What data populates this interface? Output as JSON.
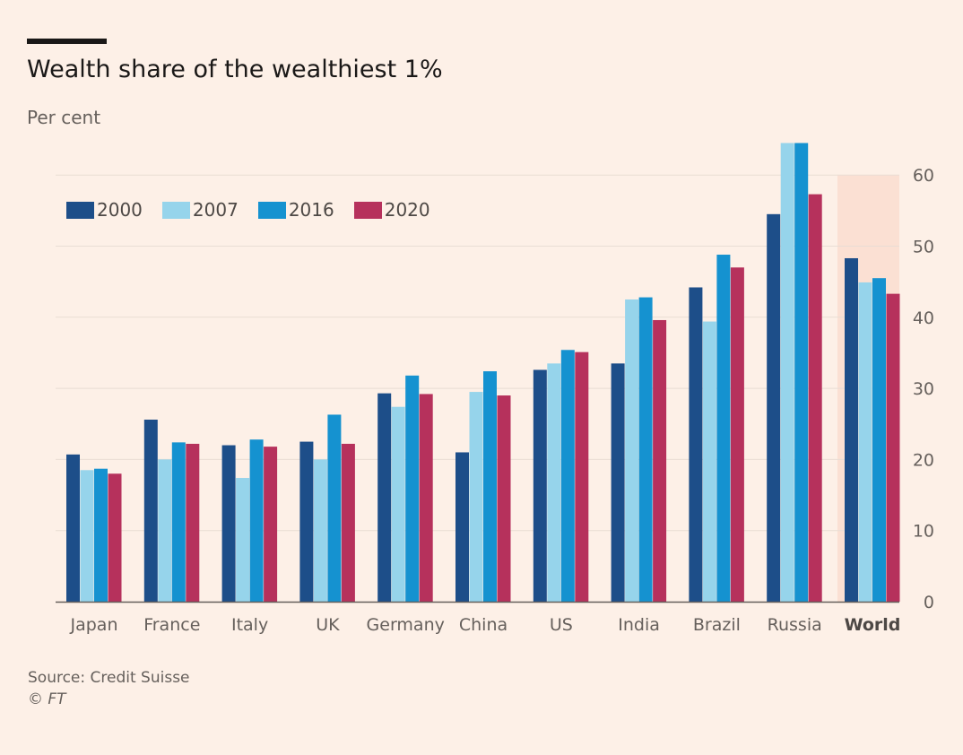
{
  "header": {
    "title": "Wealth share of the wealthiest 1%",
    "subtitle": "Per cent"
  },
  "footer": {
    "source": "Source: Credit Suisse",
    "credit": "© FT"
  },
  "colors": {
    "background": "#fdf0e7",
    "highlight_band": "#fbe0d3",
    "gridline": "#e9ddd4",
    "baseline": "#66605c"
  },
  "chart_data": {
    "type": "bar",
    "categories": [
      "Japan",
      "France",
      "Italy",
      "UK",
      "Germany",
      "China",
      "US",
      "India",
      "Brazil",
      "Russia",
      "World"
    ],
    "highlighted_category": "World",
    "series": [
      {
        "name": "2000",
        "color": "#1d4e89",
        "values": [
          20.7,
          25.6,
          22.0,
          22.5,
          29.3,
          21.0,
          32.6,
          33.5,
          44.2,
          54.5,
          48.3
        ]
      },
      {
        "name": "2007",
        "color": "#96d4eb",
        "values": [
          18.5,
          20.0,
          17.4,
          20.0,
          27.4,
          29.5,
          33.5,
          42.5,
          39.4,
          64.5,
          44.9
        ]
      },
      {
        "name": "2016",
        "color": "#1592d0",
        "values": [
          18.7,
          22.4,
          22.8,
          26.3,
          31.8,
          32.4,
          35.4,
          42.8,
          48.8,
          64.5,
          45.5
        ]
      },
      {
        "name": "2020",
        "color": "#b6315c",
        "values": [
          18.0,
          22.2,
          21.8,
          22.2,
          29.2,
          29.0,
          35.1,
          39.6,
          47.0,
          57.3,
          43.3
        ]
      }
    ],
    "y_axis": {
      "position": "right",
      "ylim": [
        0,
        60
      ],
      "ticks": [
        0,
        10,
        20,
        30,
        40,
        50,
        60
      ]
    },
    "grid": true,
    "legend_position": "top-left"
  }
}
